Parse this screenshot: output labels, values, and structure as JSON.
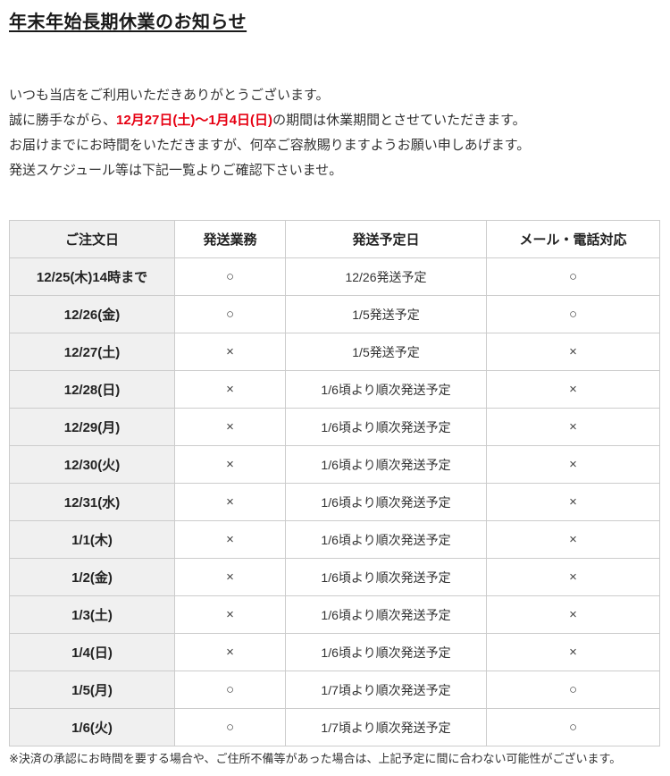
{
  "page": {
    "title": "年末年始長期休業のお知らせ",
    "intro": {
      "line1": "いつも当店をご利用いただきありがとうございます。",
      "line2_prefix": "誠に勝手ながら、",
      "line2_highlight": "12月27日(土)～1月4日(日)",
      "line2_suffix": "の期間は休業期間とさせていただきます。",
      "line3": "お届けまでにお時間をいただきますが、何卒ご容赦賜りますようお願い申しあげます。",
      "line4": "発送スケジュール等は下記一覧よりご確認下さいませ。"
    },
    "footnote": "※決済の承認にお時間を要する場合や、ご住所不備等があった場合は、上記予定に間に合わない可能性がございます。"
  },
  "colors": {
    "highlight_red": "#e60012",
    "table_border": "#cccccc",
    "row_header_bg": "#f0f0f0"
  },
  "table": {
    "headers": [
      "ご注文日",
      "発送業務",
      "発送予定日",
      "メール・電話対応"
    ],
    "rows": [
      {
        "date": "12/25(木)14時まで",
        "shipping": "○",
        "eta": "12/26発送予定",
        "support": "○"
      },
      {
        "date": "12/26(金)",
        "shipping": "○",
        "eta": "1/5発送予定",
        "support": "○"
      },
      {
        "date": "12/27(土)",
        "shipping": "×",
        "eta": "1/5発送予定",
        "support": "×"
      },
      {
        "date": "12/28(日)",
        "shipping": "×",
        "eta": "1/6頃より順次発送予定",
        "support": "×"
      },
      {
        "date": "12/29(月)",
        "shipping": "×",
        "eta": "1/6頃より順次発送予定",
        "support": "×"
      },
      {
        "date": "12/30(火)",
        "shipping": "×",
        "eta": "1/6頃より順次発送予定",
        "support": "×"
      },
      {
        "date": "12/31(水)",
        "shipping": "×",
        "eta": "1/6頃より順次発送予定",
        "support": "×"
      },
      {
        "date": "1/1(木)",
        "shipping": "×",
        "eta": "1/6頃より順次発送予定",
        "support": "×"
      },
      {
        "date": "1/2(金)",
        "shipping": "×",
        "eta": "1/6頃より順次発送予定",
        "support": "×"
      },
      {
        "date": "1/3(土)",
        "shipping": "×",
        "eta": "1/6頃より順次発送予定",
        "support": "×"
      },
      {
        "date": "1/4(日)",
        "shipping": "×",
        "eta": "1/6頃より順次発送予定",
        "support": "×"
      },
      {
        "date": "1/5(月)",
        "shipping": "○",
        "eta": "1/7頃より順次発送予定",
        "support": "○"
      },
      {
        "date": "1/6(火)",
        "shipping": "○",
        "eta": "1/7頃より順次発送予定",
        "support": "○"
      }
    ]
  }
}
